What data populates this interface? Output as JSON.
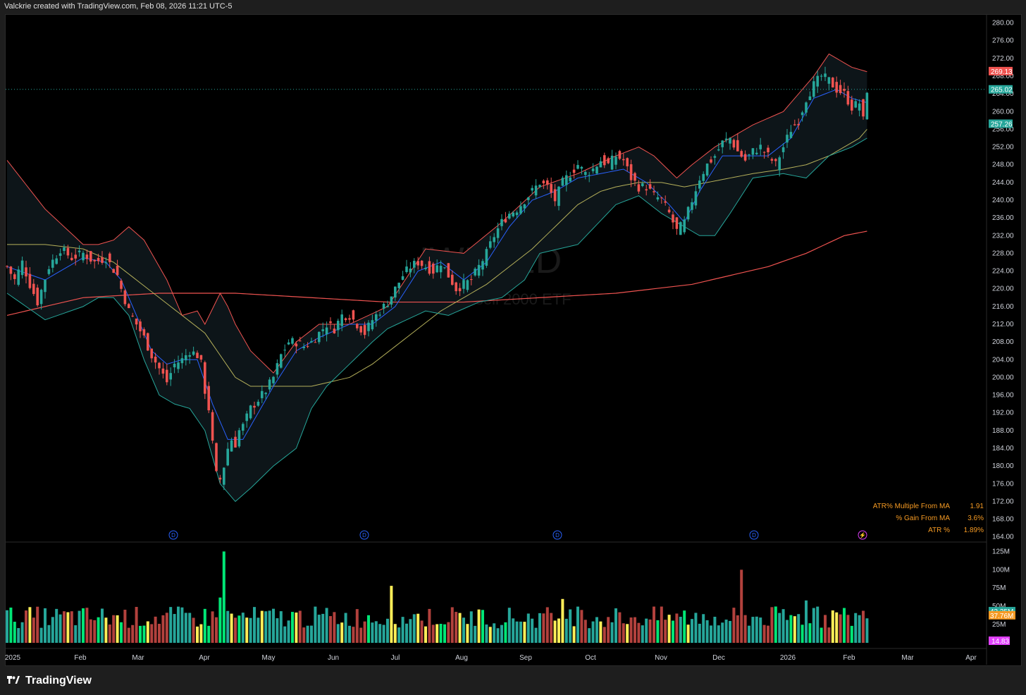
{
  "header": {
    "text": "Valckrie created with TradingView.com, Feb 08, 2026 11:21 UTC-5"
  },
  "watermark": {
    "symbol": "IWM, 1D",
    "name": "iShares Russell 2000 ETF"
  },
  "footer": {
    "brand": "TradingView"
  },
  "stats": [
    {
      "label": "ATR% Multiple From MA",
      "value": "1.91"
    },
    {
      "label": "% Gain From MA",
      "value": "3.6%"
    },
    {
      "label": "ATR %",
      "value": "1.89%"
    }
  ],
  "event_markers": {
    "dividend": "D",
    "earnings": "⚡"
  },
  "colors": {
    "up": "#26a69a",
    "down": "#ef5350",
    "bb_mid": "#2962ff",
    "bb_upper": "#ef5350",
    "bb_lower": "#26a69a",
    "ma50": "#b5b05a",
    "ma200": "#ef5350",
    "vol_green": "#00e676",
    "vol_yellow": "#ffee58",
    "vol_teal": "#26a69a",
    "vol_red": "#b2413d"
  },
  "chart_data": {
    "type": "candlestick",
    "symbol": "IWM",
    "interval": "1D",
    "price_axis": {
      "ticks": [
        "280.00",
        "276.00",
        "272.00",
        "268.00",
        "264.00",
        "260.00",
        "256.00",
        "252.00",
        "248.00",
        "244.00",
        "240.00",
        "236.00",
        "232.00",
        "228.00",
        "224.00",
        "220.00",
        "216.00",
        "212.00",
        "208.00",
        "204.00",
        "200.00",
        "196.00",
        "192.00",
        "188.00",
        "184.00",
        "180.00",
        "176.00",
        "172.00",
        "168.00",
        "164.00"
      ],
      "ylim": [
        163,
        282
      ]
    },
    "price_labels": [
      {
        "text": "269.13",
        "value": 269.13,
        "color": "#ef5350"
      },
      {
        "text": "265.02",
        "value": 265.02,
        "color": "#26a69a"
      },
      {
        "text": "257.26",
        "value": 257.26,
        "color": "#26a69a"
      }
    ],
    "time_axis": [
      "2025",
      "Feb",
      "Mar",
      "Apr",
      "May",
      "Jun",
      "Jul",
      "Aug",
      "Sep",
      "Oct",
      "Nov",
      "Dec",
      "2026",
      "Feb",
      "Mar",
      "Apr"
    ],
    "volume_axis": {
      "ticks": [
        "125M",
        "100M",
        "75M",
        "50M",
        "25M"
      ],
      "ylim": [
        0,
        135
      ]
    },
    "volume_labels": [
      {
        "text": "43.35M",
        "value": 43.35,
        "color": "#26a69a"
      },
      {
        "text": "37.76M",
        "value": 37.76,
        "color": "#f59a23"
      }
    ],
    "indicator_label": {
      "text": "14.83",
      "color": "#e040fb"
    },
    "close_path": [
      [
        0,
        225
      ],
      [
        2,
        222
      ],
      [
        4,
        226
      ],
      [
        6,
        221
      ],
      [
        8,
        217
      ],
      [
        11,
        225
      ],
      [
        14,
        229
      ],
      [
        17,
        227
      ],
      [
        20,
        228
      ],
      [
        23,
        226
      ],
      [
        26,
        227
      ],
      [
        29,
        223
      ],
      [
        30,
        220
      ],
      [
        32,
        215
      ],
      [
        34,
        212
      ],
      [
        36,
        209
      ],
      [
        38,
        205
      ],
      [
        40,
        202
      ],
      [
        42,
        199
      ],
      [
        44,
        203
      ],
      [
        46,
        204
      ],
      [
        48,
        206
      ],
      [
        50,
        205
      ],
      [
        51,
        203
      ],
      [
        52,
        197
      ],
      [
        53,
        193
      ],
      [
        54,
        185
      ],
      [
        55,
        178
      ],
      [
        56,
        177
      ],
      [
        57,
        180
      ],
      [
        58,
        184
      ],
      [
        59,
        186
      ],
      [
        60,
        185
      ],
      [
        61,
        188
      ],
      [
        62,
        189
      ],
      [
        64,
        193
      ],
      [
        66,
        195
      ],
      [
        68,
        197
      ],
      [
        70,
        200
      ],
      [
        72,
        205
      ],
      [
        74,
        208
      ],
      [
        76,
        208
      ],
      [
        78,
        207
      ],
      [
        80,
        208
      ],
      [
        82,
        210
      ],
      [
        84,
        212
      ],
      [
        86,
        211
      ],
      [
        88,
        214
      ],
      [
        90,
        214
      ],
      [
        92,
        212
      ],
      [
        94,
        210
      ],
      [
        96,
        213
      ],
      [
        98,
        215
      ],
      [
        100,
        217
      ],
      [
        102,
        220
      ],
      [
        104,
        223
      ],
      [
        106,
        225
      ],
      [
        108,
        226
      ],
      [
        110,
        225
      ],
      [
        112,
        224
      ],
      [
        114,
        226
      ],
      [
        116,
        223
      ],
      [
        118,
        220
      ],
      [
        120,
        221
      ],
      [
        122,
        222
      ],
      [
        124,
        225
      ],
      [
        126,
        228
      ],
      [
        128,
        232
      ],
      [
        130,
        235
      ],
      [
        132,
        237
      ],
      [
        134,
        238
      ],
      [
        136,
        240
      ],
      [
        138,
        242
      ],
      [
        140,
        244
      ],
      [
        142,
        243
      ],
      [
        144,
        240
      ],
      [
        146,
        244
      ],
      [
        148,
        246
      ],
      [
        150,
        248
      ],
      [
        152,
        246
      ],
      [
        154,
        247
      ],
      [
        156,
        249
      ],
      [
        158,
        248
      ],
      [
        160,
        250
      ],
      [
        162,
        249
      ],
      [
        164,
        245
      ],
      [
        166,
        243
      ],
      [
        168,
        243
      ],
      [
        170,
        241
      ],
      [
        172,
        240
      ],
      [
        174,
        237
      ],
      [
        176,
        233
      ],
      [
        178,
        235
      ],
      [
        180,
        240
      ],
      [
        182,
        245
      ],
      [
        184,
        248
      ],
      [
        186,
        250
      ],
      [
        188,
        253
      ],
      [
        190,
        254
      ],
      [
        192,
        251
      ],
      [
        194,
        249
      ],
      [
        196,
        251
      ],
      [
        198,
        252
      ],
      [
        200,
        250
      ],
      [
        202,
        248
      ],
      [
        204,
        252
      ],
      [
        206,
        256
      ],
      [
        208,
        258
      ],
      [
        210,
        263
      ],
      [
        212,
        266
      ],
      [
        214,
        268
      ],
      [
        216,
        267
      ],
      [
        218,
        265
      ],
      [
        220,
        264
      ],
      [
        222,
        261
      ],
      [
        224,
        262
      ],
      [
        225,
        258
      ],
      [
        226,
        265
      ]
    ],
    "bb_upper_path": [
      [
        0,
        249
      ],
      [
        10,
        238
      ],
      [
        20,
        230
      ],
      [
        24,
        230
      ],
      [
        28,
        231
      ],
      [
        32,
        234
      ],
      [
        36,
        231
      ],
      [
        42,
        222
      ],
      [
        46,
        214
      ],
      [
        50,
        215
      ],
      [
        52,
        212
      ],
      [
        56,
        219
      ],
      [
        58,
        216
      ],
      [
        60,
        212
      ],
      [
        64,
        206
      ],
      [
        70,
        201
      ],
      [
        76,
        208
      ],
      [
        82,
        212
      ],
      [
        90,
        212
      ],
      [
        100,
        216
      ],
      [
        110,
        229
      ],
      [
        120,
        228
      ],
      [
        130,
        235
      ],
      [
        140,
        243
      ],
      [
        150,
        246
      ],
      [
        160,
        250
      ],
      [
        166,
        252
      ],
      [
        170,
        250
      ],
      [
        176,
        245
      ],
      [
        180,
        248
      ],
      [
        186,
        252
      ],
      [
        196,
        257
      ],
      [
        204,
        260
      ],
      [
        212,
        268
      ],
      [
        216,
        273
      ],
      [
        222,
        270
      ],
      [
        226,
        269
      ]
    ],
    "bb_lower_path": [
      [
        0,
        219
      ],
      [
        10,
        213
      ],
      [
        20,
        216
      ],
      [
        24,
        218
      ],
      [
        28,
        218
      ],
      [
        32,
        214
      ],
      [
        36,
        204
      ],
      [
        40,
        196
      ],
      [
        44,
        194
      ],
      [
        48,
        193
      ],
      [
        52,
        188
      ],
      [
        56,
        176
      ],
      [
        60,
        172
      ],
      [
        64,
        175
      ],
      [
        70,
        180
      ],
      [
        76,
        184
      ],
      [
        80,
        193
      ],
      [
        84,
        198
      ],
      [
        90,
        203
      ],
      [
        96,
        208
      ],
      [
        100,
        211
      ],
      [
        110,
        215
      ],
      [
        116,
        214
      ],
      [
        124,
        217
      ],
      [
        130,
        218
      ],
      [
        136,
        222
      ],
      [
        140,
        228
      ],
      [
        150,
        230
      ],
      [
        160,
        239
      ],
      [
        166,
        241
      ],
      [
        172,
        237
      ],
      [
        178,
        234
      ],
      [
        182,
        232
      ],
      [
        186,
        232
      ],
      [
        190,
        237
      ],
      [
        196,
        245
      ],
      [
        204,
        246
      ],
      [
        210,
        245
      ],
      [
        216,
        250
      ],
      [
        222,
        252
      ],
      [
        226,
        254
      ]
    ],
    "bb_mid_path": [
      [
        0,
        225
      ],
      [
        10,
        222
      ],
      [
        20,
        227
      ],
      [
        26,
        226
      ],
      [
        30,
        222
      ],
      [
        34,
        214
      ],
      [
        38,
        206
      ],
      [
        42,
        203
      ],
      [
        46,
        204
      ],
      [
        50,
        204
      ],
      [
        54,
        194
      ],
      [
        58,
        186
      ],
      [
        62,
        186
      ],
      [
        66,
        192
      ],
      [
        70,
        198
      ],
      [
        76,
        206
      ],
      [
        82,
        209
      ],
      [
        90,
        212
      ],
      [
        96,
        212
      ],
      [
        102,
        216
      ],
      [
        108,
        224
      ],
      [
        114,
        226
      ],
      [
        120,
        222
      ],
      [
        126,
        226
      ],
      [
        132,
        234
      ],
      [
        138,
        240
      ],
      [
        144,
        242
      ],
      [
        150,
        245
      ],
      [
        156,
        246
      ],
      [
        162,
        247
      ],
      [
        168,
        244
      ],
      [
        174,
        239
      ],
      [
        178,
        235
      ],
      [
        182,
        242
      ],
      [
        188,
        250
      ],
      [
        194,
        250
      ],
      [
        200,
        250
      ],
      [
        206,
        254
      ],
      [
        212,
        263
      ],
      [
        218,
        265
      ],
      [
        222,
        263
      ],
      [
        226,
        262
      ]
    ],
    "ma50_path": [
      [
        0,
        230
      ],
      [
        10,
        230
      ],
      [
        20,
        229
      ],
      [
        28,
        226
      ],
      [
        34,
        222
      ],
      [
        40,
        218
      ],
      [
        46,
        214
      ],
      [
        52,
        210
      ],
      [
        56,
        205
      ],
      [
        60,
        200
      ],
      [
        64,
        198
      ],
      [
        70,
        198
      ],
      [
        80,
        198
      ],
      [
        90,
        200
      ],
      [
        96,
        203
      ],
      [
        102,
        207
      ],
      [
        108,
        211
      ],
      [
        114,
        215
      ],
      [
        120,
        218
      ],
      [
        126,
        221
      ],
      [
        132,
        225
      ],
      [
        138,
        229
      ],
      [
        144,
        234
      ],
      [
        150,
        239
      ],
      [
        156,
        242
      ],
      [
        160,
        243
      ],
      [
        166,
        244
      ],
      [
        172,
        244
      ],
      [
        178,
        243
      ],
      [
        184,
        244
      ],
      [
        190,
        245
      ],
      [
        196,
        246
      ],
      [
        204,
        247
      ],
      [
        210,
        248
      ],
      [
        216,
        250
      ],
      [
        220,
        252
      ],
      [
        224,
        254
      ],
      [
        226,
        256
      ]
    ],
    "ma200_path": [
      [
        0,
        214
      ],
      [
        20,
        218
      ],
      [
        40,
        219
      ],
      [
        60,
        219
      ],
      [
        80,
        218
      ],
      [
        100,
        217
      ],
      [
        120,
        217
      ],
      [
        140,
        218
      ],
      [
        160,
        219
      ],
      [
        180,
        221
      ],
      [
        190,
        223
      ],
      [
        200,
        225
      ],
      [
        210,
        228
      ],
      [
        220,
        232
      ],
      [
        226,
        233
      ]
    ]
  }
}
